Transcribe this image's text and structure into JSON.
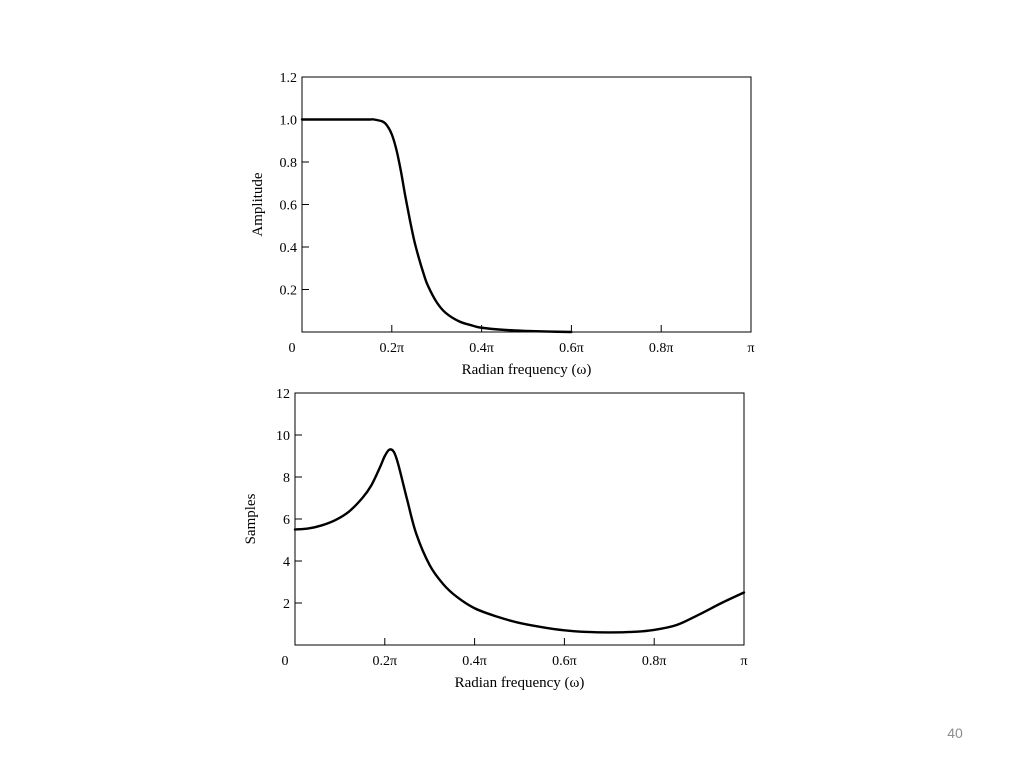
{
  "slide": {
    "number": "40"
  },
  "chart_data": [
    {
      "type": "line",
      "xlabel": "Radian frequency (ω)",
      "ylabel": "Amplitude",
      "xlim": [
        0,
        1
      ],
      "ylim": [
        0,
        1.2
      ],
      "x_unit": "π rad",
      "x_ticks": [
        0,
        0.2,
        0.4,
        0.6,
        0.8,
        1.0
      ],
      "x_tick_labels": [
        "0",
        "0.2π",
        "0.4π",
        "0.6π",
        "0.8π",
        "π"
      ],
      "y_ticks": [
        0.2,
        0.4,
        0.6,
        0.8,
        1.0,
        1.2
      ],
      "y_tick_labels": [
        "0.2",
        "0.4",
        "0.6",
        "0.8",
        "1.0",
        "1.2"
      ],
      "grid": false,
      "series": [
        {
          "x": [
            0,
            0.05,
            0.1,
            0.15,
            0.16,
            0.18,
            0.19,
            0.2,
            0.21,
            0.22,
            0.23,
            0.24,
            0.25,
            0.26,
            0.27,
            0.28,
            0.3,
            0.32,
            0.35,
            0.38,
            0.4,
            0.45,
            0.5,
            0.55,
            0.6
          ],
          "values": [
            1.0,
            1.0,
            1.0,
            1.0,
            1.0,
            0.99,
            0.97,
            0.93,
            0.86,
            0.76,
            0.64,
            0.53,
            0.43,
            0.35,
            0.28,
            0.22,
            0.14,
            0.09,
            0.05,
            0.03,
            0.02,
            0.01,
            0.005,
            0.002,
            0.0
          ]
        }
      ]
    },
    {
      "type": "line",
      "xlabel": "Radian frequency (ω)",
      "ylabel": "Samples",
      "xlim": [
        0,
        1
      ],
      "ylim": [
        0,
        12
      ],
      "x_unit": "π rad",
      "x_ticks": [
        0,
        0.2,
        0.4,
        0.6,
        0.8,
        1.0
      ],
      "x_tick_labels": [
        "0",
        "0.2π",
        "0.4π",
        "0.6π",
        "0.8π",
        "π"
      ],
      "y_ticks": [
        2,
        4,
        6,
        8,
        10,
        12
      ],
      "y_tick_labels": [
        "2",
        "4",
        "6",
        "8",
        "10",
        "12"
      ],
      "grid": false,
      "series": [
        {
          "x": [
            0,
            0.03,
            0.06,
            0.09,
            0.12,
            0.15,
            0.17,
            0.19,
            0.2,
            0.21,
            0.22,
            0.23,
            0.25,
            0.27,
            0.3,
            0.33,
            0.36,
            0.4,
            0.45,
            0.5,
            0.55,
            0.6,
            0.65,
            0.7,
            0.75,
            0.8,
            0.85,
            0.9,
            0.95,
            1.0
          ],
          "values": [
            5.5,
            5.55,
            5.7,
            5.95,
            6.35,
            7.0,
            7.6,
            8.5,
            9.0,
            9.3,
            9.2,
            8.6,
            6.9,
            5.3,
            3.8,
            2.9,
            2.3,
            1.75,
            1.35,
            1.05,
            0.85,
            0.7,
            0.62,
            0.6,
            0.62,
            0.72,
            0.95,
            1.45,
            2.0,
            2.5
          ]
        }
      ]
    }
  ]
}
